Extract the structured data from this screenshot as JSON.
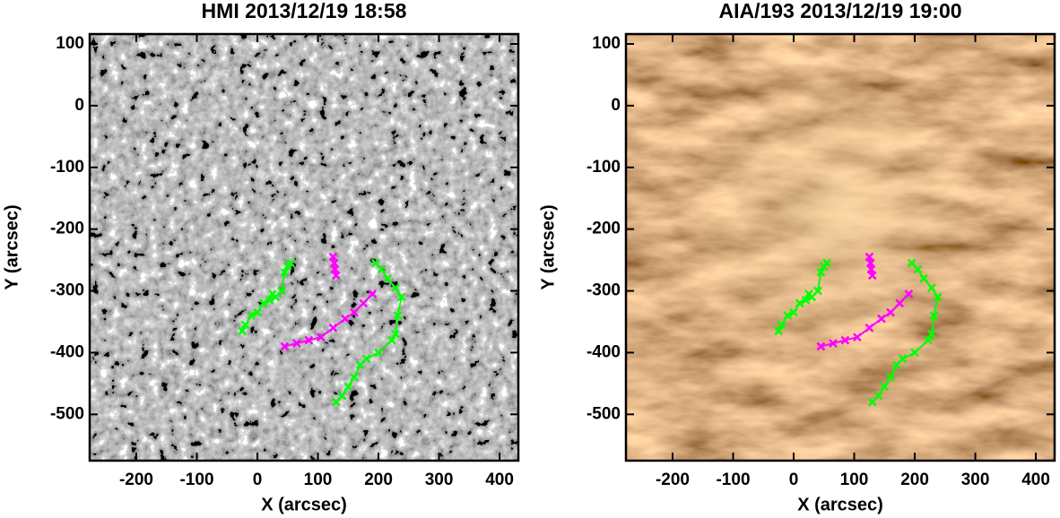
{
  "chart_data": [
    {
      "type": "image",
      "title": "HMI 2013/12/19 18:58",
      "xlabel": "X (arcsec)",
      "ylabel": "Y (arcsec)",
      "xlim": [
        -277,
        431
      ],
      "ylim": [
        -575,
        116
      ],
      "xticks": [
        -200,
        -100,
        0,
        100,
        200,
        300,
        400
      ],
      "yticks": [
        -500,
        -400,
        -300,
        -200,
        -100,
        0,
        100
      ],
      "series": [
        {
          "color": "#00ff00",
          "x": [
            -25,
            -20,
            -10,
            0,
            10,
            20,
            25,
            30,
            40,
            45,
            50,
            55
          ],
          "values": [
            -365,
            -355,
            -340,
            -335,
            -320,
            -315,
            -305,
            -310,
            -300,
            -270,
            -260,
            -255
          ]
        },
        {
          "color": "#ff00ff",
          "x": [
            45,
            65,
            85,
            105,
            125,
            145,
            160,
            175,
            190
          ],
          "values": [
            -390,
            -385,
            -380,
            -375,
            -360,
            -345,
            -335,
            -320,
            -305
          ]
        },
        {
          "color": "#ff00ff",
          "x": [
            125,
            127,
            128,
            130
          ],
          "values": [
            -245,
            -255,
            -265,
            -275
          ]
        },
        {
          "color": "#00ff00",
          "x": [
            195,
            205,
            215,
            228,
            238,
            232,
            228,
            222,
            200,
            180,
            170,
            160,
            150,
            140,
            130
          ],
          "values": [
            -255,
            -265,
            -280,
            -295,
            -310,
            -340,
            -370,
            -380,
            -400,
            -410,
            -420,
            -440,
            -455,
            -470,
            -480
          ]
        }
      ]
    },
    {
      "type": "image",
      "title": "AIA/193 2013/12/19 19:00",
      "xlabel": "X (arcsec)",
      "ylabel": "Y (arcsec)",
      "xlim": [
        -277,
        431
      ],
      "ylim": [
        -575,
        116
      ],
      "xticks": [
        -200,
        -100,
        0,
        100,
        200,
        300,
        400
      ],
      "yticks": [
        -500,
        -400,
        -300,
        -200,
        -100,
        0,
        100
      ],
      "series": [
        {
          "color": "#00ff00",
          "x": [
            -25,
            -20,
            -10,
            0,
            10,
            20,
            25,
            30,
            40,
            45,
            50,
            55
          ],
          "values": [
            -365,
            -355,
            -340,
            -335,
            -320,
            -315,
            -305,
            -310,
            -300,
            -270,
            -260,
            -255
          ]
        },
        {
          "color": "#ff00ff",
          "x": [
            45,
            65,
            85,
            105,
            125,
            145,
            160,
            175,
            190
          ],
          "values": [
            -390,
            -385,
            -380,
            -375,
            -360,
            -345,
            -335,
            -320,
            -305
          ]
        },
        {
          "color": "#ff00ff",
          "x": [
            125,
            127,
            128,
            130
          ],
          "values": [
            -245,
            -255,
            -265,
            -275
          ]
        },
        {
          "color": "#00ff00",
          "x": [
            195,
            205,
            215,
            228,
            238,
            232,
            228,
            222,
            200,
            180,
            170,
            160,
            150,
            140,
            130
          ],
          "values": [
            -255,
            -265,
            -280,
            -295,
            -310,
            -340,
            -370,
            -380,
            -400,
            -410,
            -420,
            -440,
            -455,
            -470,
            -480
          ]
        }
      ]
    }
  ]
}
